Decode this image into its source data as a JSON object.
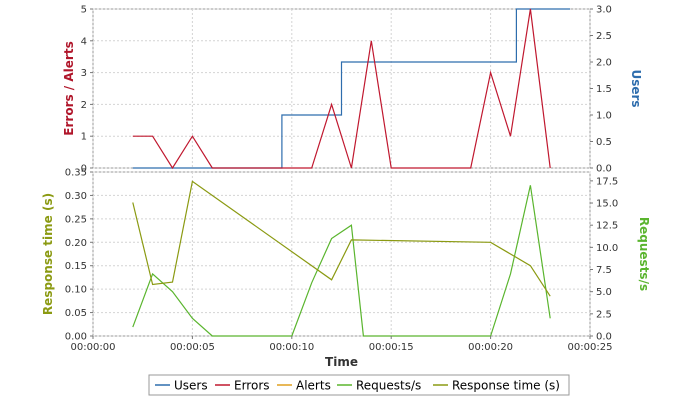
{
  "chart_data": {
    "type": "line",
    "xlabel": "Time",
    "xlim": [
      0,
      25
    ],
    "x_ticks": [
      "00:00:00",
      "00:00:05",
      "00:00:10",
      "00:00:15",
      "00:00:20",
      "00:00:25"
    ],
    "x_tick_values": [
      0,
      5,
      10,
      15,
      20,
      25
    ],
    "legend_position": "bottom",
    "legend": [
      "Users",
      "Errors",
      "Alerts",
      "Requests/s",
      "Response time (s)"
    ],
    "panels": [
      {
        "name": "top",
        "left_axis": {
          "label": "Errors / Alerts",
          "color": "#b0152a",
          "ylim": [
            0,
            5
          ],
          "ticks": [
            0,
            1,
            2,
            3,
            4,
            5
          ],
          "tick_labels": [
            "0",
            "1",
            "2",
            "3",
            "4",
            "5"
          ]
        },
        "right_axis": {
          "label": "Users",
          "color": "#2e6dad",
          "ylim": [
            0,
            3
          ],
          "ticks": [
            0,
            0.5,
            1,
            1.5,
            2,
            2.5,
            3
          ],
          "tick_labels": [
            "0.0",
            "0.5",
            "1.0",
            "1.5",
            "2.0",
            "2.5",
            "3.0"
          ]
        },
        "series": [
          {
            "name": "Users",
            "axis": "right",
            "color": "#2e6dad",
            "step": true,
            "x": [
              2,
              9.5,
              9.5,
              12.5,
              12.5,
              21.3,
              21.3,
              24
            ],
            "values": [
              0,
              0,
              1,
              1,
              2,
              2,
              3,
              3
            ]
          },
          {
            "name": "Errors",
            "axis": "left",
            "color": "#c0182f",
            "x": [
              2,
              3,
              4,
              5,
              6,
              7,
              8,
              9,
              10,
              11,
              12,
              13,
              14,
              15,
              16,
              17,
              18,
              19,
              20,
              21,
              22,
              23
            ],
            "values": [
              1,
              1,
              0,
              1,
              0,
              0,
              0,
              0,
              0,
              0,
              2,
              0,
              4,
              0,
              0,
              0,
              0,
              0,
              3,
              1,
              5,
              0
            ]
          }
        ]
      },
      {
        "name": "bottom",
        "left_axis": {
          "label": "Response time (s)",
          "color": "#8b9a12",
          "ylim": [
            0,
            0.35
          ],
          "ticks": [
            0,
            0.05,
            0.1,
            0.15,
            0.2,
            0.25,
            0.3,
            0.35
          ],
          "tick_labels": [
            "0.00",
            "0.05",
            "0.10",
            "0.15",
            "0.20",
            "0.25",
            "0.30",
            "0.35"
          ]
        },
        "right_axis": {
          "label": "Requests/s",
          "color": "#5ab52e",
          "ylim": [
            0,
            18.5
          ],
          "ticks": [
            0,
            2.5,
            5,
            7.5,
            10,
            12.5,
            15,
            17.5
          ],
          "tick_labels": [
            "0.0",
            "2.5",
            "5.0",
            "7.5",
            "10.0",
            "12.5",
            "15.0",
            "17.5"
          ]
        },
        "series": [
          {
            "name": "Requests/s",
            "axis": "right",
            "color": "#5ab52e",
            "x": [
              2,
              3,
              4,
              5,
              6,
              7,
              10,
              11,
              12,
              13,
              13.6,
              15,
              20,
              21,
              22,
              23
            ],
            "values": [
              1,
              7,
              5,
              2,
              0,
              0,
              0,
              6,
              11,
              12.5,
              0,
              0,
              0,
              7,
              17,
              2
            ],
            "extra": [
              [
                22,
                18.5
              ],
              [
                23,
                1.8
              ]
            ]
          },
          {
            "name": "Response time (s)",
            "axis": "left",
            "color": "#8b9a12",
            "x": [
              2,
              3,
              4,
              5,
              12,
              13,
              20,
              22,
              23
            ],
            "values": [
              0.285,
              0.11,
              0.115,
              0.33,
              0.12,
              0.205,
              0.2,
              0.15,
              0.085
            ]
          }
        ]
      }
    ]
  }
}
